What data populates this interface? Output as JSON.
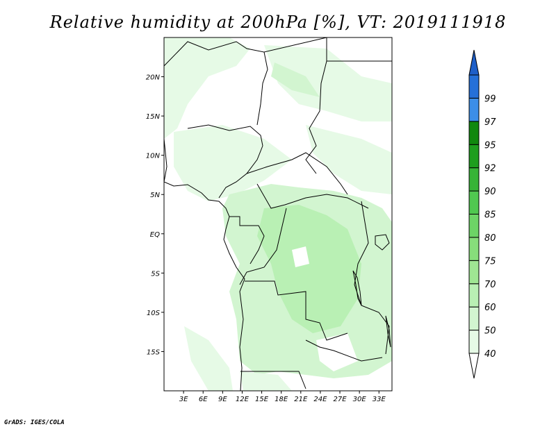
{
  "title": "Relative humidity at 200hPa [%], VT: 2019111918",
  "credit": "GrADS: IGES/COLA",
  "map": {
    "lat_ticks": [
      {
        "label": "20N",
        "lat": 20
      },
      {
        "label": "15N",
        "lat": 15
      },
      {
        "label": "10N",
        "lat": 10
      },
      {
        "label": "5N",
        "lat": 5
      },
      {
        "label": "EQ",
        "lat": 0
      },
      {
        "label": "5S",
        "lat": -5
      },
      {
        "label": "10S",
        "lat": -10
      },
      {
        "label": "15S",
        "lat": -15
      }
    ],
    "lon_ticks": [
      {
        "label": "3E",
        "lon": 3
      },
      {
        "label": "6E",
        "lon": 6
      },
      {
        "label": "9E",
        "lon": 9
      },
      {
        "label": "12E",
        "lon": 12
      },
      {
        "label": "15E",
        "lon": 15
      },
      {
        "label": "18E",
        "lon": 18
      },
      {
        "label": "21E",
        "lon": 21
      },
      {
        "label": "24E",
        "lon": 24
      },
      {
        "label": "27E",
        "lon": 27
      },
      {
        "label": "30E",
        "lon": 30
      },
      {
        "label": "33E",
        "lon": 33
      }
    ],
    "lon_range": [
      0,
      35
    ],
    "lat_range": [
      -20,
      25
    ]
  },
  "colorbar": {
    "levels": [
      {
        "label": "40",
        "color": "#e6fae6"
      },
      {
        "label": "50",
        "color": "#d2f5d0"
      },
      {
        "label": "60",
        "color": "#b9f0b4"
      },
      {
        "label": "70",
        "color": "#9fe693"
      },
      {
        "label": "75",
        "color": "#87dd7b"
      },
      {
        "label": "80",
        "color": "#6dd466"
      },
      {
        "label": "85",
        "color": "#50c850"
      },
      {
        "label": "90",
        "color": "#37b437"
      },
      {
        "label": "92",
        "color": "#1e9e1e"
      },
      {
        "label": "95",
        "color": "#10880e"
      },
      {
        "label": "97",
        "color": "#3c8ee8"
      },
      {
        "label": "99",
        "color": "#2570d8"
      }
    ],
    "over_color": "#1e5fc8",
    "under_color": "#ffffff"
  }
}
